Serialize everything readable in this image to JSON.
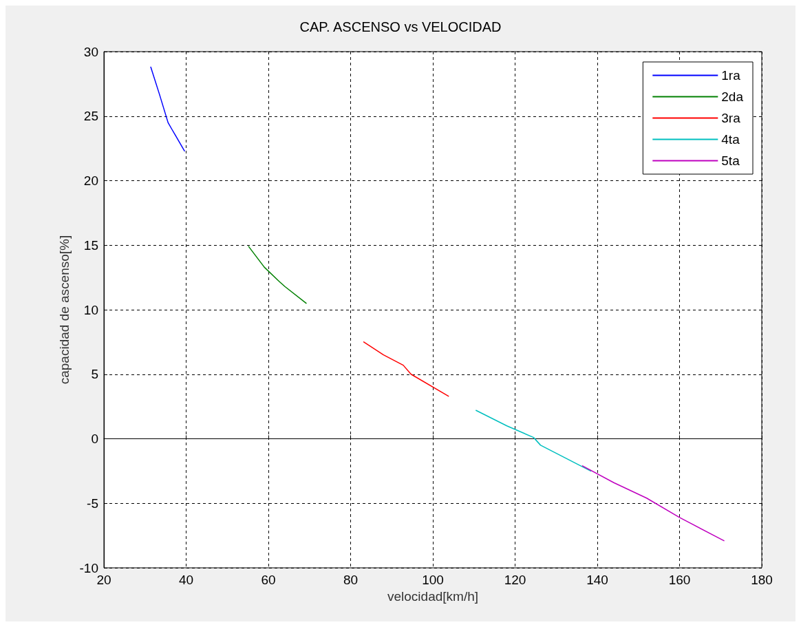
{
  "chart_data": {
    "type": "line",
    "title": "CAP. ASCENSO vs VELOCIDAD",
    "xlabel": "velocidad[km/h]",
    "ylabel": "capacidad de ascenso[%]",
    "xlim": [
      20,
      180
    ],
    "xticks": [
      20,
      40,
      60,
      80,
      100,
      120,
      140,
      160,
      180
    ],
    "ylim": [
      -10,
      30
    ],
    "yticks": [
      -10,
      -5,
      0,
      5,
      10,
      15,
      20,
      25,
      30
    ],
    "grid": true,
    "legend": "top right",
    "series": [
      {
        "name": "1ra",
        "color": "#0000ff",
        "x": [
          31.4,
          33.5,
          35.6,
          36.5,
          39.6
        ],
        "values": [
          28.8,
          26.7,
          24.5,
          24.0,
          22.3
        ]
      },
      {
        "name": "2da",
        "color": "#008000",
        "x": [
          55.2,
          59,
          62.6,
          64,
          69.2
        ],
        "values": [
          14.9,
          13.3,
          12.2,
          11.8,
          10.5
        ]
      },
      {
        "name": "3ra",
        "color": "#ff0000",
        "x": [
          83.2,
          88,
          92.8,
          94.7,
          103.8
        ],
        "values": [
          7.5,
          6.5,
          5.7,
          5.0,
          3.3
        ]
      },
      {
        "name": "4ta",
        "color": "#00bfbf",
        "x": [
          110.5,
          118,
          124.5,
          126.2,
          138.4
        ],
        "values": [
          2.2,
          1.0,
          0.1,
          -0.5,
          -2.5
        ]
      },
      {
        "name": "5ta",
        "color": "#bf00bf",
        "x": [
          136.4,
          144,
          152.0,
          160,
          170.8
        ],
        "values": [
          -2.1,
          -3.4,
          -4.6,
          -6.1,
          -7.9
        ]
      }
    ]
  }
}
